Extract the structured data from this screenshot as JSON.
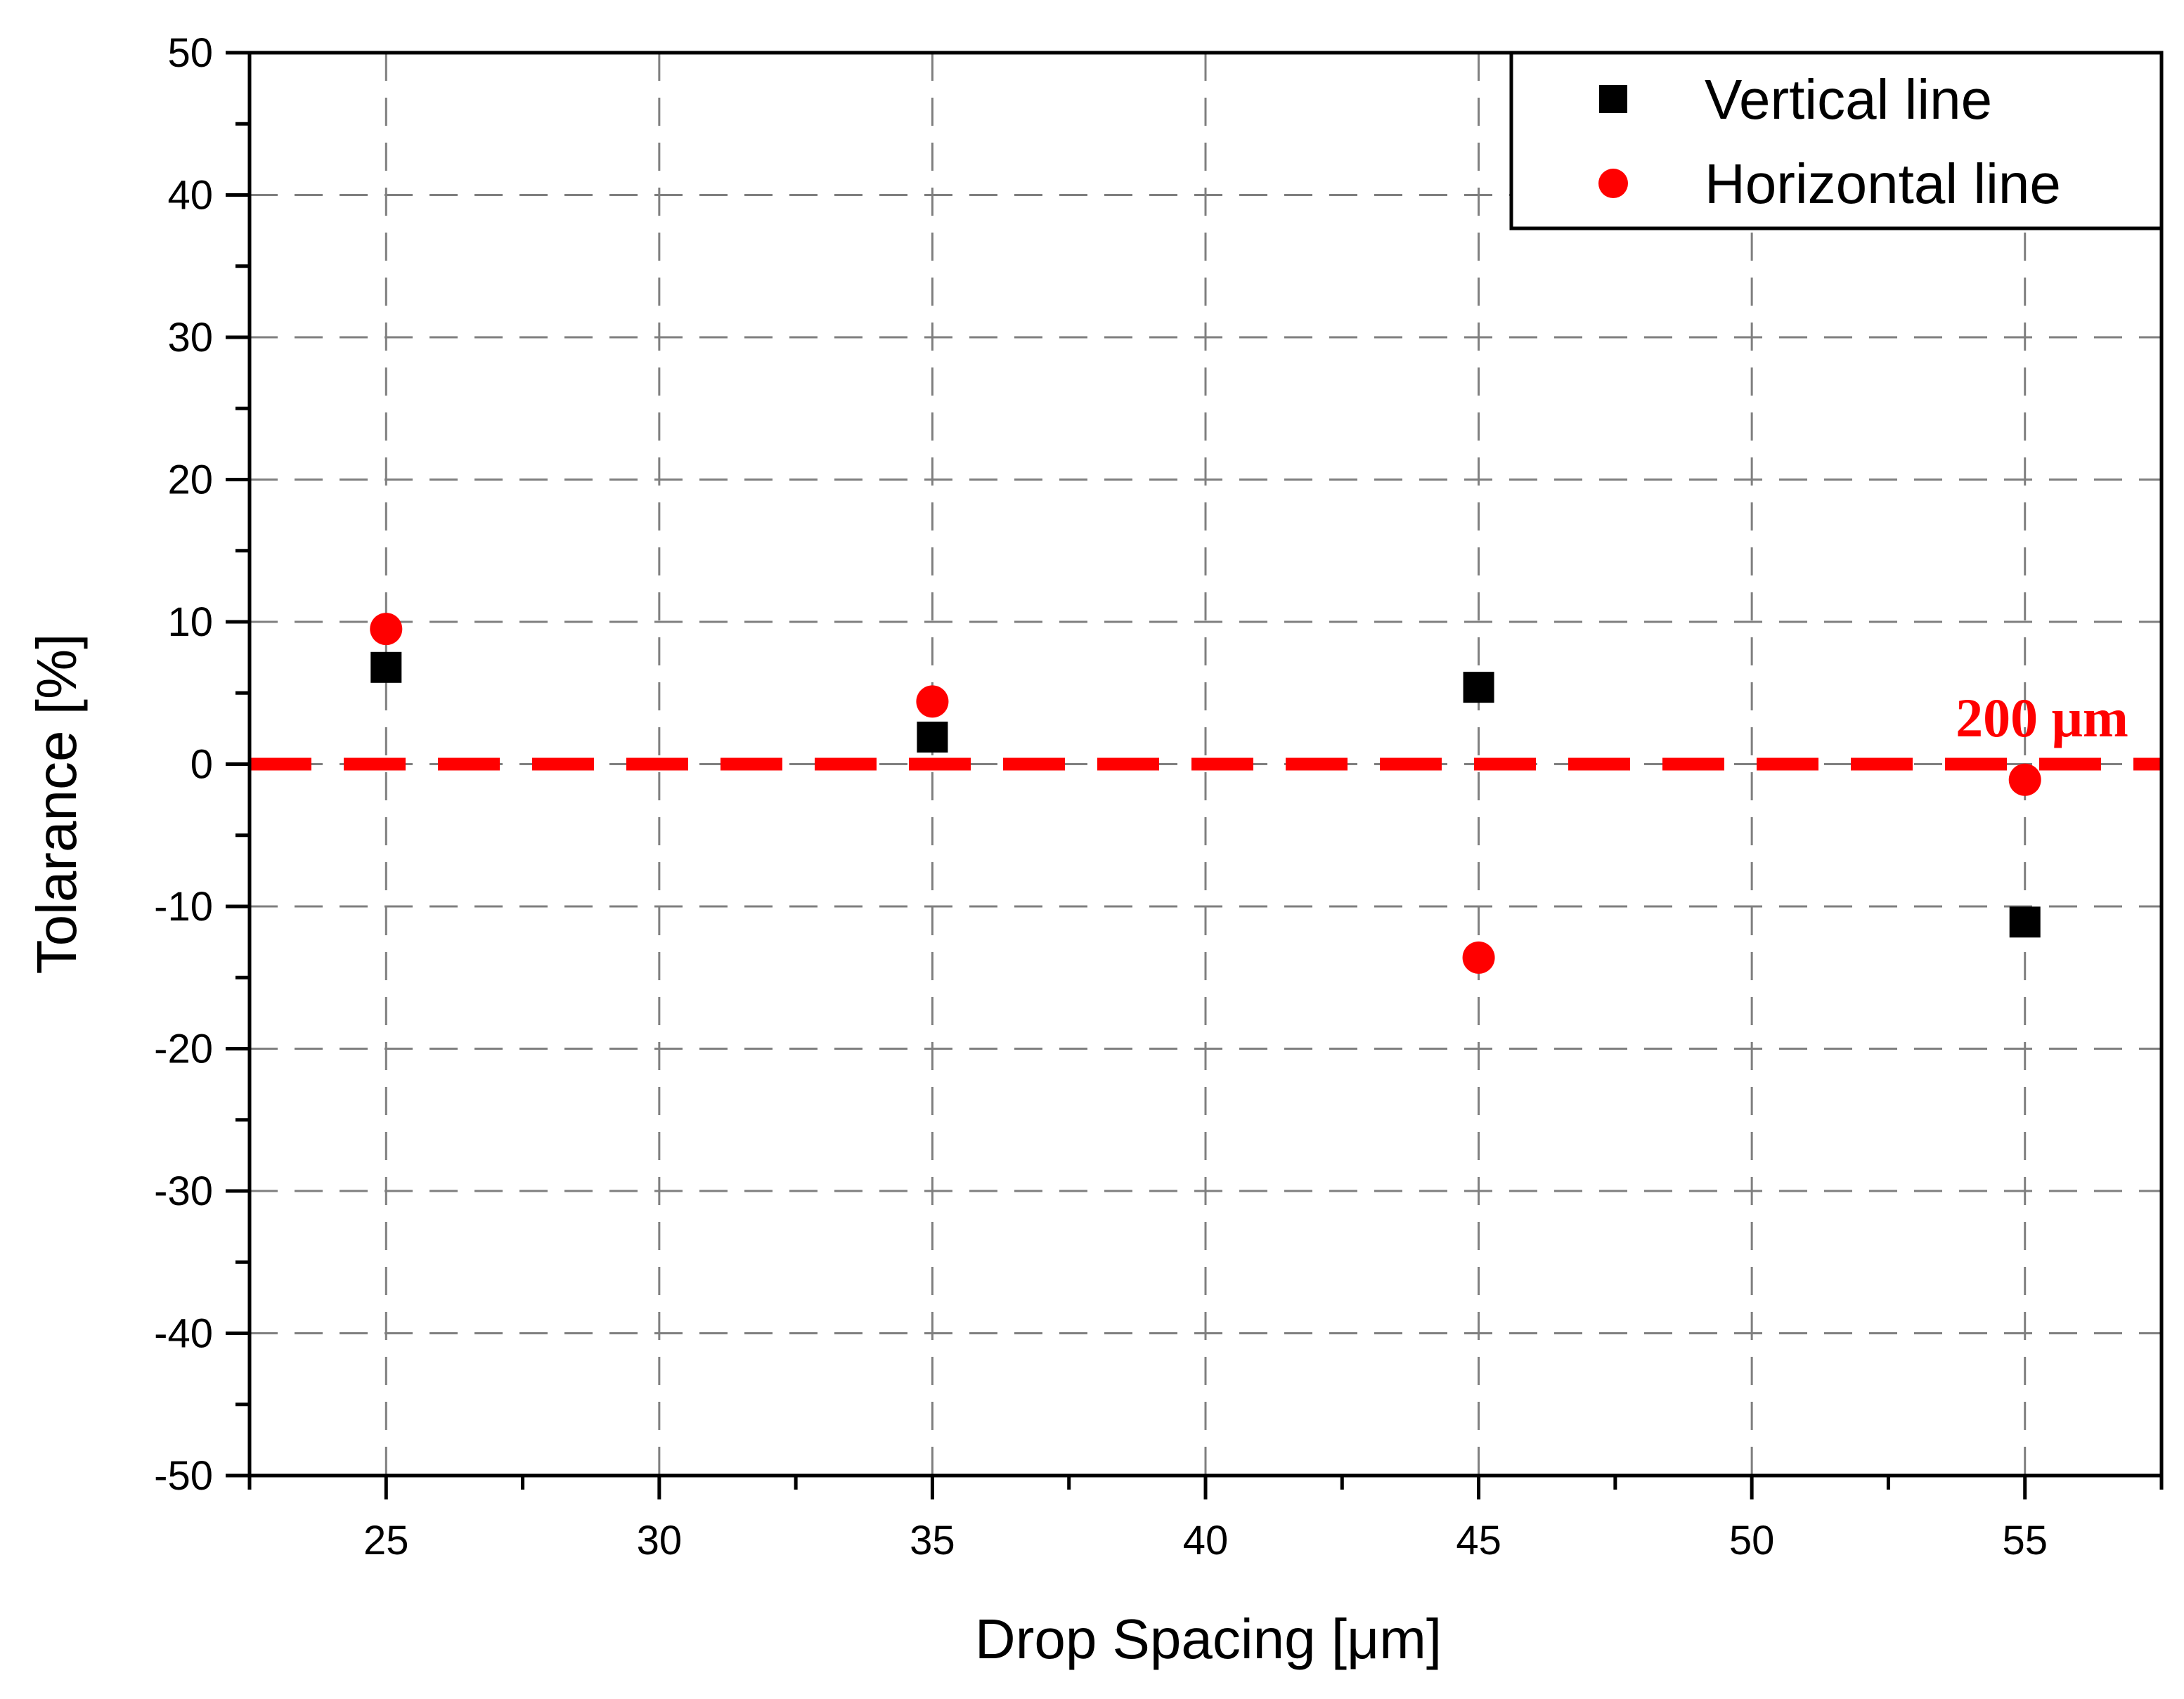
{
  "chart_data": {
    "type": "scatter",
    "title": "",
    "xlabel": "Drop Spacing [μm]",
    "ylabel": "Tolarance [%]",
    "xlim": [
      22.5,
      57.5
    ],
    "ylim": [
      -50,
      50
    ],
    "xticks": [
      25,
      30,
      35,
      40,
      45,
      50,
      55
    ],
    "yticks": [
      -50,
      -40,
      -30,
      -20,
      -10,
      0,
      10,
      20,
      30,
      40,
      50
    ],
    "grid": true,
    "legend_position": "top-right",
    "series": [
      {
        "name": "Vertical line",
        "marker": "square",
        "color": "#000000",
        "x": [
          25,
          35,
          45,
          55
        ],
        "y": [
          6.8,
          1.9,
          5.4,
          -11.1
        ]
      },
      {
        "name": "Horizontal line",
        "marker": "circle",
        "color": "#ff0000",
        "x": [
          25,
          35,
          45,
          55
        ],
        "y": [
          9.5,
          4.4,
          -13.6,
          -1.1
        ]
      }
    ],
    "reference_line": {
      "y": 0,
      "color": "#ff0000",
      "label": "200 μm"
    }
  }
}
